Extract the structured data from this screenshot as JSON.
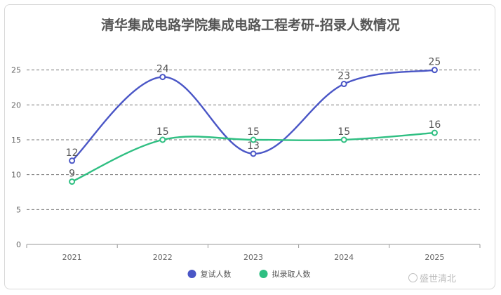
{
  "chart_data": {
    "type": "line",
    "title": "清华集成电路学院集成电路工程考研-招录人数情况",
    "categories": [
      "2021",
      "2022",
      "2023",
      "2024",
      "2025"
    ],
    "ylim": [
      0,
      30
    ],
    "yticks": [
      0,
      5,
      10,
      15,
      20,
      25
    ],
    "grid": true,
    "smooth": true,
    "legend_position": "bottom-center",
    "series": [
      {
        "name": "复试人数",
        "color": "#4a56c6",
        "values": [
          12,
          24,
          13,
          23,
          25
        ]
      },
      {
        "name": "拟录取人数",
        "color": "#2fbf82",
        "values": [
          9,
          15,
          15,
          15,
          16
        ]
      }
    ]
  },
  "watermark": "盛世清北"
}
